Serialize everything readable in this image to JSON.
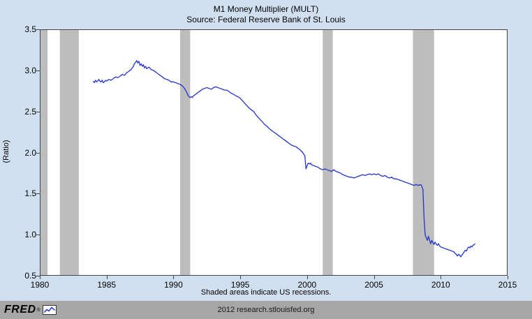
{
  "header": {
    "title": "M1 Money Multiplier (MULT)",
    "subtitle": "Source: Federal Reserve Bank of St. Louis"
  },
  "footer": {
    "recession_note": "Shaded areas indicate US recessions.",
    "attribution": "2012 research.stlouisfed.org",
    "logo_text": "FRED",
    "logo_reg": "®",
    "logo_icon": "line-chart-icon"
  },
  "colors": {
    "background": "#d1e0f0",
    "plot_background": "#ffffff",
    "line": "#2233cc",
    "recession_band": "#bdbdbd",
    "axis": "#444444",
    "footer_bar": "#a6a6a6"
  },
  "chart_data": {
    "type": "line",
    "title": "M1 Money Multiplier (MULT)",
    "subtitle": "Source: Federal Reserve Bank of St. Louis",
    "xlabel": "",
    "ylabel": "(Ratio)",
    "xlim": [
      1980,
      2015
    ],
    "ylim": [
      0.5,
      3.5
    ],
    "xticks": [
      1980,
      1985,
      1990,
      1995,
      2000,
      2005,
      2010,
      2015
    ],
    "yticks": [
      0.5,
      1.0,
      1.5,
      2.0,
      2.5,
      3.0,
      3.5
    ],
    "grid": false,
    "legend": "none",
    "recessions": [
      [
        1980.0,
        1980.58
      ],
      [
        1981.5,
        1982.92
      ],
      [
        1990.5,
        1991.25
      ],
      [
        2001.17,
        2001.92
      ],
      [
        2007.92,
        2009.5
      ]
    ],
    "series": [
      {
        "name": "MULT",
        "points": [
          [
            1984.0,
            2.87
          ],
          [
            1984.08,
            2.85
          ],
          [
            1984.17,
            2.88
          ],
          [
            1984.25,
            2.86
          ],
          [
            1984.33,
            2.87
          ],
          [
            1984.42,
            2.89
          ],
          [
            1984.5,
            2.87
          ],
          [
            1984.58,
            2.86
          ],
          [
            1984.67,
            2.88
          ],
          [
            1984.75,
            2.85
          ],
          [
            1984.83,
            2.86
          ],
          [
            1984.92,
            2.88
          ],
          [
            1985.0,
            2.87
          ],
          [
            1985.17,
            2.89
          ],
          [
            1985.33,
            2.88
          ],
          [
            1985.5,
            2.9
          ],
          [
            1985.67,
            2.92
          ],
          [
            1985.83,
            2.91
          ],
          [
            1986.0,
            2.93
          ],
          [
            1986.17,
            2.95
          ],
          [
            1986.33,
            2.94
          ],
          [
            1986.5,
            2.97
          ],
          [
            1986.67,
            2.99
          ],
          [
            1986.83,
            3.01
          ],
          [
            1987.0,
            3.05
          ],
          [
            1987.08,
            3.08
          ],
          [
            1987.17,
            3.1
          ],
          [
            1987.25,
            3.12
          ],
          [
            1987.33,
            3.09
          ],
          [
            1987.42,
            3.11
          ],
          [
            1987.5,
            3.06
          ],
          [
            1987.58,
            3.08
          ],
          [
            1987.67,
            3.05
          ],
          [
            1987.75,
            3.07
          ],
          [
            1987.83,
            3.03
          ],
          [
            1987.92,
            3.05
          ],
          [
            1988.0,
            3.02
          ],
          [
            1988.17,
            3.04
          ],
          [
            1988.33,
            3.01
          ],
          [
            1988.5,
            3.0
          ],
          [
            1988.67,
            2.98
          ],
          [
            1988.83,
            2.96
          ],
          [
            1989.0,
            2.94
          ],
          [
            1989.17,
            2.92
          ],
          [
            1989.33,
            2.9
          ],
          [
            1989.5,
            2.89
          ],
          [
            1989.67,
            2.88
          ],
          [
            1989.83,
            2.86
          ],
          [
            1990.0,
            2.86
          ],
          [
            1990.17,
            2.85
          ],
          [
            1990.33,
            2.84
          ],
          [
            1990.5,
            2.83
          ],
          [
            1990.67,
            2.81
          ],
          [
            1990.83,
            2.78
          ],
          [
            1991.0,
            2.73
          ],
          [
            1991.08,
            2.7
          ],
          [
            1991.17,
            2.68
          ],
          [
            1991.25,
            2.67
          ],
          [
            1991.33,
            2.68
          ],
          [
            1991.42,
            2.67
          ],
          [
            1991.5,
            2.69
          ],
          [
            1991.67,
            2.71
          ],
          [
            1991.83,
            2.73
          ],
          [
            1992.0,
            2.75
          ],
          [
            1992.17,
            2.77
          ],
          [
            1992.33,
            2.78
          ],
          [
            1992.5,
            2.79
          ],
          [
            1992.67,
            2.78
          ],
          [
            1992.83,
            2.77
          ],
          [
            1993.0,
            2.79
          ],
          [
            1993.17,
            2.8
          ],
          [
            1993.33,
            2.79
          ],
          [
            1993.5,
            2.78
          ],
          [
            1993.67,
            2.77
          ],
          [
            1993.83,
            2.76
          ],
          [
            1994.0,
            2.76
          ],
          [
            1994.17,
            2.74
          ],
          [
            1994.33,
            2.72
          ],
          [
            1994.5,
            2.71
          ],
          [
            1994.67,
            2.69
          ],
          [
            1994.83,
            2.68
          ],
          [
            1995.0,
            2.66
          ],
          [
            1995.17,
            2.63
          ],
          [
            1995.33,
            2.6
          ],
          [
            1995.5,
            2.57
          ],
          [
            1995.67,
            2.54
          ],
          [
            1995.83,
            2.52
          ],
          [
            1996.0,
            2.5
          ],
          [
            1996.17,
            2.46
          ],
          [
            1996.33,
            2.43
          ],
          [
            1996.5,
            2.4
          ],
          [
            1996.67,
            2.37
          ],
          [
            1996.83,
            2.34
          ],
          [
            1997.0,
            2.32
          ],
          [
            1997.17,
            2.29
          ],
          [
            1997.33,
            2.27
          ],
          [
            1997.5,
            2.25
          ],
          [
            1997.67,
            2.23
          ],
          [
            1997.83,
            2.21
          ],
          [
            1998.0,
            2.19
          ],
          [
            1998.17,
            2.17
          ],
          [
            1998.33,
            2.15
          ],
          [
            1998.5,
            2.13
          ],
          [
            1998.67,
            2.11
          ],
          [
            1998.83,
            2.09
          ],
          [
            1999.0,
            2.08
          ],
          [
            1999.17,
            2.07
          ],
          [
            1999.33,
            2.05
          ],
          [
            1999.5,
            2.03
          ],
          [
            1999.67,
            2.0
          ],
          [
            1999.83,
            1.96
          ],
          [
            1999.92,
            1.8
          ],
          [
            2000.0,
            1.84
          ],
          [
            2000.08,
            1.87
          ],
          [
            2000.17,
            1.86
          ],
          [
            2000.25,
            1.87
          ],
          [
            2000.33,
            1.85
          ],
          [
            2000.5,
            1.84
          ],
          [
            2000.67,
            1.83
          ],
          [
            2000.83,
            1.82
          ],
          [
            2001.0,
            1.8
          ],
          [
            2001.17,
            1.79
          ],
          [
            2001.33,
            1.8
          ],
          [
            2001.5,
            1.79
          ],
          [
            2001.67,
            1.78
          ],
          [
            2001.83,
            1.77
          ],
          [
            2002.0,
            1.79
          ],
          [
            2002.17,
            1.77
          ],
          [
            2002.33,
            1.76
          ],
          [
            2002.5,
            1.75
          ],
          [
            2002.67,
            1.73
          ],
          [
            2002.83,
            1.72
          ],
          [
            2003.0,
            1.71
          ],
          [
            2003.17,
            1.7
          ],
          [
            2003.33,
            1.7
          ],
          [
            2003.5,
            1.69
          ],
          [
            2003.67,
            1.7
          ],
          [
            2003.83,
            1.71
          ],
          [
            2004.0,
            1.72
          ],
          [
            2004.17,
            1.73
          ],
          [
            2004.33,
            1.72
          ],
          [
            2004.5,
            1.73
          ],
          [
            2004.67,
            1.74
          ],
          [
            2004.83,
            1.73
          ],
          [
            2005.0,
            1.74
          ],
          [
            2005.17,
            1.73
          ],
          [
            2005.33,
            1.74
          ],
          [
            2005.5,
            1.72
          ],
          [
            2005.67,
            1.71
          ],
          [
            2005.83,
            1.72
          ],
          [
            2006.0,
            1.7
          ],
          [
            2006.17,
            1.69
          ],
          [
            2006.33,
            1.7
          ],
          [
            2006.5,
            1.68
          ],
          [
            2006.67,
            1.68
          ],
          [
            2006.83,
            1.67
          ],
          [
            2007.0,
            1.66
          ],
          [
            2007.17,
            1.65
          ],
          [
            2007.33,
            1.64
          ],
          [
            2007.5,
            1.63
          ],
          [
            2007.67,
            1.62
          ],
          [
            2007.83,
            1.61
          ],
          [
            2008.0,
            1.6
          ],
          [
            2008.17,
            1.61
          ],
          [
            2008.33,
            1.6
          ],
          [
            2008.5,
            1.61
          ],
          [
            2008.58,
            1.59
          ],
          [
            2008.67,
            1.55
          ],
          [
            2008.75,
            1.2
          ],
          [
            2008.83,
            1.0
          ],
          [
            2008.92,
            0.96
          ],
          [
            2009.0,
            0.93
          ],
          [
            2009.08,
            0.98
          ],
          [
            2009.17,
            0.93
          ],
          [
            2009.25,
            0.89
          ],
          [
            2009.33,
            0.93
          ],
          [
            2009.42,
            0.9
          ],
          [
            2009.5,
            0.88
          ],
          [
            2009.58,
            0.91
          ],
          [
            2009.67,
            0.88
          ],
          [
            2009.75,
            0.87
          ],
          [
            2009.83,
            0.89
          ],
          [
            2009.92,
            0.86
          ],
          [
            2010.0,
            0.85
          ],
          [
            2010.17,
            0.84
          ],
          [
            2010.33,
            0.83
          ],
          [
            2010.5,
            0.82
          ],
          [
            2010.67,
            0.81
          ],
          [
            2010.83,
            0.8
          ],
          [
            2011.0,
            0.79
          ],
          [
            2011.08,
            0.77
          ],
          [
            2011.17,
            0.76
          ],
          [
            2011.25,
            0.74
          ],
          [
            2011.33,
            0.76
          ],
          [
            2011.42,
            0.75
          ],
          [
            2011.5,
            0.73
          ],
          [
            2011.58,
            0.75
          ],
          [
            2011.67,
            0.77
          ],
          [
            2011.75,
            0.79
          ],
          [
            2011.83,
            0.81
          ],
          [
            2011.92,
            0.8
          ],
          [
            2012.0,
            0.83
          ],
          [
            2012.08,
            0.85
          ],
          [
            2012.17,
            0.84
          ],
          [
            2012.25,
            0.86
          ],
          [
            2012.33,
            0.85
          ],
          [
            2012.42,
            0.87
          ],
          [
            2012.5,
            0.88
          ],
          [
            2012.58,
            0.89
          ]
        ]
      }
    ]
  }
}
